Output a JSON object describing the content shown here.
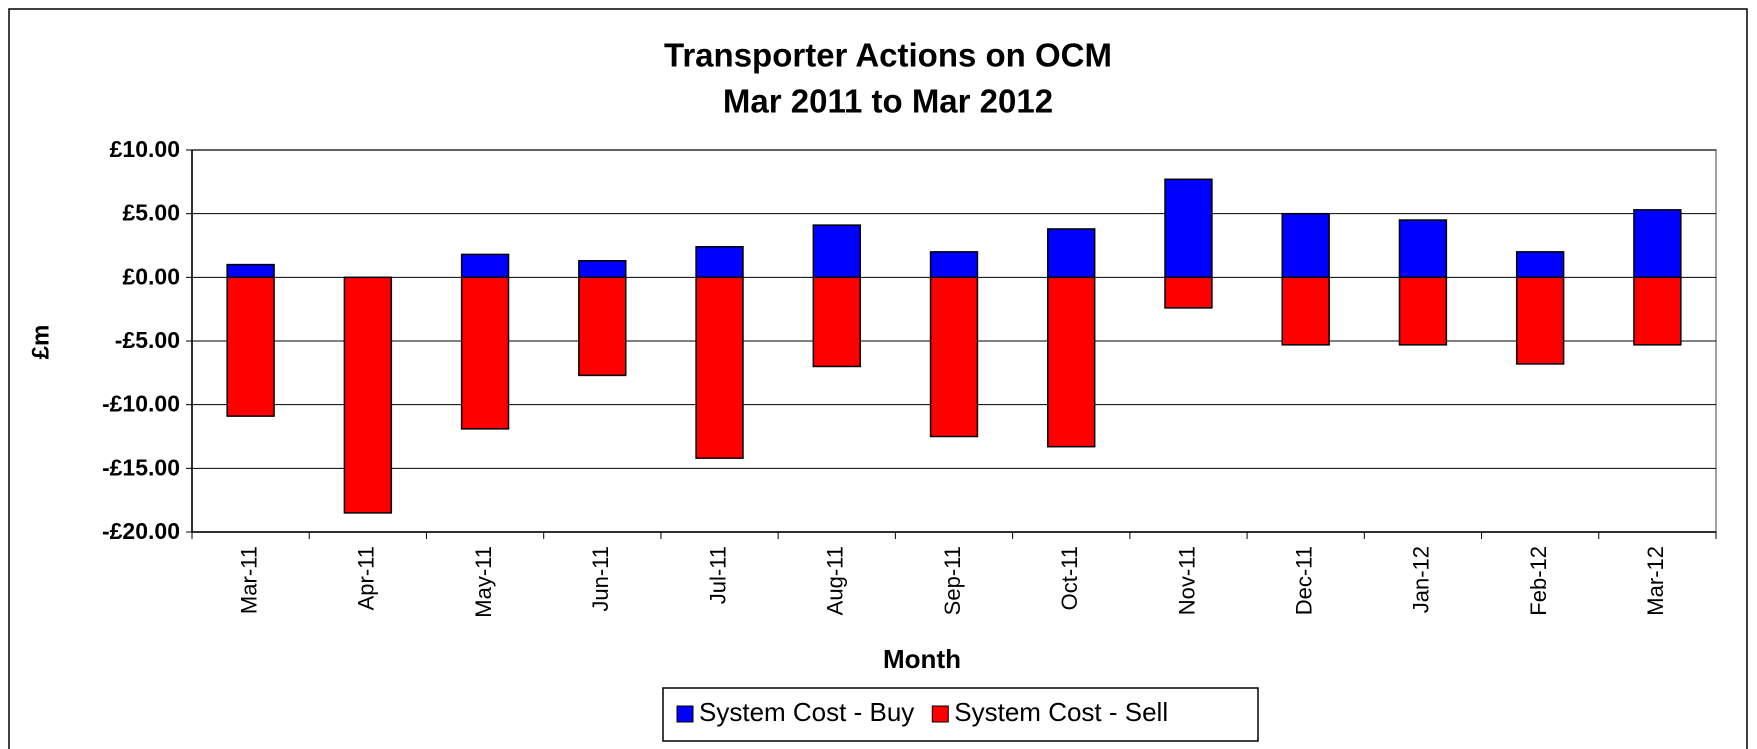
{
  "chart_data": {
    "type": "bar",
    "stacked": true,
    "title": [
      "Transporter Actions on OCM",
      "Mar 2011 to Mar 2012"
    ],
    "x_label": "Month",
    "y_label": "£m",
    "categories": [
      "Mar-11",
      "Apr-11",
      "May-11",
      "Jun-11",
      "Jul-11",
      "Aug-11",
      "Sep-11",
      "Oct-11",
      "Nov-11",
      "Dec-11",
      "Jan-12",
      "Feb-12",
      "Mar-12"
    ],
    "series": [
      {
        "name": "System Cost - Buy",
        "color": "#0000ff",
        "values": [
          1.0,
          0,
          1.8,
          1.3,
          2.4,
          4.1,
          2.0,
          3.8,
          7.7,
          5.0,
          4.5,
          2.0,
          5.3
        ]
      },
      {
        "name": "System Cost - Sell",
        "color": "#ff0000",
        "values": [
          -10.9,
          -18.5,
          -11.9,
          -7.7,
          -14.2,
          -7.0,
          -12.5,
          -13.3,
          -2.4,
          -5.3,
          -5.3,
          -6.8,
          -5.3
        ]
      }
    ],
    "ylim": [
      -20,
      10
    ],
    "yticks": [
      {
        "value": -20,
        "label": "-£20.00"
      },
      {
        "value": -15,
        "label": "-£15.00"
      },
      {
        "value": -10,
        "label": "-£10.00"
      },
      {
        "value": -5,
        "label": "-£5.00"
      },
      {
        "value": 0,
        "label": "£0.00"
      },
      {
        "value": 5,
        "label": "£5.00"
      },
      {
        "value": 10,
        "label": "£10.00"
      }
    ],
    "grid": true,
    "legend": "bottom"
  }
}
